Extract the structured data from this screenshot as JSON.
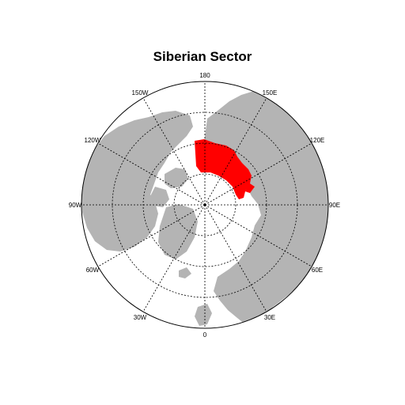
{
  "title": "Siberian Sector",
  "map": {
    "projection": "polar-stereographic",
    "land_color": "#b4b4b4",
    "ocean_color": "#ffffff",
    "highlight_color": "#ff0000",
    "highlight_region": "Siberian Sector",
    "latitude_circles": [
      60,
      70,
      80
    ],
    "longitude_labels": [
      {
        "lon": 180,
        "text": "180"
      },
      {
        "lon": 150,
        "text": "150E"
      },
      {
        "lon": 120,
        "text": "120E"
      },
      {
        "lon": 90,
        "text": "90E"
      },
      {
        "lon": 60,
        "text": "60E"
      },
      {
        "lon": 30,
        "text": "30E"
      },
      {
        "lon": 0,
        "text": "0"
      },
      {
        "lon": -30,
        "text": "30W"
      },
      {
        "lon": -60,
        "text": "60W"
      },
      {
        "lon": -90,
        "text": "90W"
      },
      {
        "lon": -120,
        "text": "120W"
      },
      {
        "lon": -150,
        "text": "150W"
      }
    ]
  }
}
